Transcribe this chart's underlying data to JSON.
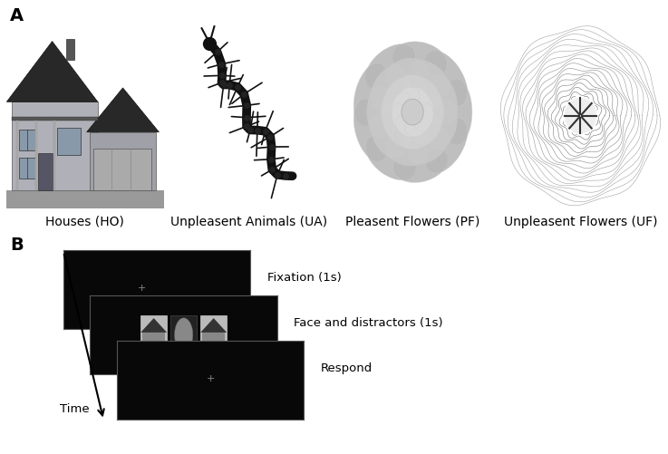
{
  "panel_A_label": "A",
  "panel_B_label": "B",
  "background_color": "#ffffff",
  "categories": [
    "Houses (HO)",
    "Unpleasent Animals (UA)",
    "Pleasent Flowers (PF)",
    "Unpleasent Flowers (UF)"
  ],
  "label_fontsize": 10,
  "panel_label_fontsize": 14,
  "timeline_labels": [
    "Fixation (1s)",
    "Face and distractors (1s)",
    "Respond"
  ],
  "time_label": "Time",
  "img_bg_house": "#c8c8c8",
  "img_bg_centipede": "#d8d8d8",
  "img_bg_rose": "#080808",
  "img_bg_uf": "#050505",
  "screen_color": "#080808"
}
